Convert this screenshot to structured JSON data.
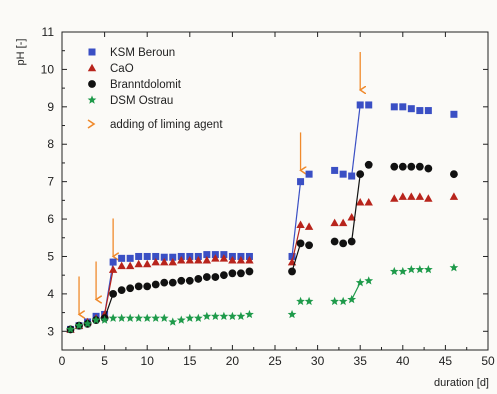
{
  "chart_data": {
    "type": "scatter",
    "title": "",
    "xlabel": "duration [d]",
    "ylabel": "pH [-]",
    "xlim": [
      0,
      50
    ],
    "ylim": [
      2.5,
      11
    ],
    "xticks": [
      0,
      5,
      10,
      15,
      20,
      25,
      30,
      35,
      40,
      45,
      50
    ],
    "yticks": [
      3,
      4,
      5,
      6,
      7,
      8,
      9,
      10,
      11
    ],
    "grid": false,
    "legend_position": "top-left",
    "series": [
      {
        "name": "KSM Beroun",
        "color": "#3a4fc4",
        "marker": "square",
        "points": [
          [
            1,
            3.05
          ],
          [
            2,
            3.15
          ],
          [
            3,
            3.25
          ],
          [
            4,
            3.4
          ],
          [
            5,
            3.45
          ],
          [
            6,
            4.85
          ],
          [
            7,
            4.95
          ],
          [
            8,
            4.95
          ],
          [
            9,
            5.0
          ],
          [
            10,
            5.0
          ],
          [
            11,
            5.0
          ],
          [
            12,
            4.98
          ],
          [
            13,
            4.98
          ],
          [
            14,
            5.0
          ],
          [
            15,
            5.0
          ],
          [
            16,
            5.0
          ],
          [
            17,
            5.05
          ],
          [
            18,
            5.05
          ],
          [
            19,
            5.05
          ],
          [
            20,
            5.0
          ],
          [
            21,
            5.0
          ],
          [
            22,
            5.0
          ],
          [
            27,
            5.0
          ],
          [
            28,
            7.0
          ],
          [
            29,
            7.2
          ],
          [
            32,
            7.3
          ],
          [
            33,
            7.2
          ],
          [
            34,
            7.15
          ],
          [
            35,
            9.05
          ],
          [
            36,
            9.05
          ],
          [
            39,
            9.0
          ],
          [
            40,
            9.0
          ],
          [
            41,
            8.95
          ],
          [
            42,
            8.9
          ],
          [
            43,
            8.9
          ],
          [
            46,
            8.8
          ]
        ],
        "connected_segments": [
          [
            5,
            6
          ],
          [
            27,
            28
          ],
          [
            34,
            35
          ]
        ]
      },
      {
        "name": "CaO",
        "color": "#b8241c",
        "marker": "triangle",
        "points": [
          [
            1,
            3.05
          ],
          [
            2,
            3.15
          ],
          [
            3,
            3.25
          ],
          [
            4,
            3.35
          ],
          [
            5,
            3.45
          ],
          [
            6,
            4.65
          ],
          [
            7,
            4.75
          ],
          [
            8,
            4.75
          ],
          [
            9,
            4.8
          ],
          [
            10,
            4.8
          ],
          [
            11,
            4.85
          ],
          [
            12,
            4.85
          ],
          [
            13,
            4.85
          ],
          [
            14,
            4.9
          ],
          [
            15,
            4.9
          ],
          [
            16,
            4.9
          ],
          [
            17,
            4.9
          ],
          [
            18,
            4.95
          ],
          [
            19,
            4.95
          ],
          [
            20,
            4.9
          ],
          [
            21,
            4.9
          ],
          [
            22,
            4.9
          ],
          [
            27,
            4.85
          ],
          [
            28,
            5.85
          ],
          [
            29,
            5.8
          ],
          [
            32,
            5.9
          ],
          [
            33,
            5.9
          ],
          [
            34,
            6.05
          ],
          [
            35,
            6.45
          ],
          [
            36,
            6.45
          ],
          [
            39,
            6.55
          ],
          [
            40,
            6.6
          ],
          [
            41,
            6.6
          ],
          [
            42,
            6.6
          ],
          [
            43,
            6.55
          ],
          [
            46,
            6.6
          ]
        ],
        "connected_segments": [
          [
            5,
            6
          ],
          [
            27,
            28
          ]
        ]
      },
      {
        "name": "Branntdolomit",
        "color": "#111111",
        "marker": "circle",
        "points": [
          [
            1,
            3.05
          ],
          [
            2,
            3.15
          ],
          [
            3,
            3.2
          ],
          [
            4,
            3.3
          ],
          [
            5,
            3.35
          ],
          [
            6,
            4.0
          ],
          [
            7,
            4.1
          ],
          [
            8,
            4.15
          ],
          [
            9,
            4.2
          ],
          [
            10,
            4.2
          ],
          [
            11,
            4.25
          ],
          [
            12,
            4.3
          ],
          [
            13,
            4.3
          ],
          [
            14,
            4.35
          ],
          [
            15,
            4.35
          ],
          [
            16,
            4.4
          ],
          [
            17,
            4.45
          ],
          [
            18,
            4.45
          ],
          [
            19,
            4.5
          ],
          [
            20,
            4.55
          ],
          [
            21,
            4.55
          ],
          [
            22,
            4.6
          ],
          [
            27,
            4.6
          ],
          [
            28,
            5.35
          ],
          [
            29,
            5.3
          ],
          [
            32,
            5.4
          ],
          [
            33,
            5.35
          ],
          [
            34,
            5.4
          ],
          [
            35,
            7.2
          ],
          [
            36,
            7.45
          ],
          [
            39,
            7.4
          ],
          [
            40,
            7.4
          ],
          [
            41,
            7.4
          ],
          [
            42,
            7.4
          ],
          [
            43,
            7.35
          ],
          [
            46,
            7.2
          ]
        ],
        "connected_segments": [
          [
            5,
            6
          ],
          [
            27,
            28
          ],
          [
            34,
            35
          ]
        ]
      },
      {
        "name": "DSM Ostrau",
        "color": "#1e9a4a",
        "marker": "star",
        "points": [
          [
            1,
            3.05
          ],
          [
            2,
            3.15
          ],
          [
            3,
            3.2
          ],
          [
            4,
            3.3
          ],
          [
            5,
            3.3
          ],
          [
            6,
            3.35
          ],
          [
            7,
            3.35
          ],
          [
            8,
            3.35
          ],
          [
            9,
            3.35
          ],
          [
            10,
            3.35
          ],
          [
            11,
            3.35
          ],
          [
            12,
            3.35
          ],
          [
            13,
            3.25
          ],
          [
            14,
            3.3
          ],
          [
            15,
            3.35
          ],
          [
            16,
            3.35
          ],
          [
            17,
            3.4
          ],
          [
            18,
            3.4
          ],
          [
            19,
            3.4
          ],
          [
            20,
            3.4
          ],
          [
            21,
            3.4
          ],
          [
            22,
            3.45
          ],
          [
            27,
            3.45
          ],
          [
            28,
            3.8
          ],
          [
            29,
            3.8
          ],
          [
            32,
            3.8
          ],
          [
            33,
            3.8
          ],
          [
            34,
            3.85
          ],
          [
            35,
            4.3
          ],
          [
            36,
            4.35
          ],
          [
            39,
            4.6
          ],
          [
            40,
            4.6
          ],
          [
            41,
            4.65
          ],
          [
            42,
            4.65
          ],
          [
            43,
            4.65
          ],
          [
            46,
            4.7
          ]
        ],
        "connected_segments": [
          [
            34,
            35
          ]
        ]
      }
    ],
    "annotation": {
      "label": "adding of liming agent",
      "color": "#f08a2c",
      "arrows": [
        [
          2,
          3.45
        ],
        [
          4,
          3.85
        ],
        [
          6,
          5.0
        ],
        [
          28,
          7.3
        ],
        [
          35,
          9.45
        ]
      ]
    }
  }
}
